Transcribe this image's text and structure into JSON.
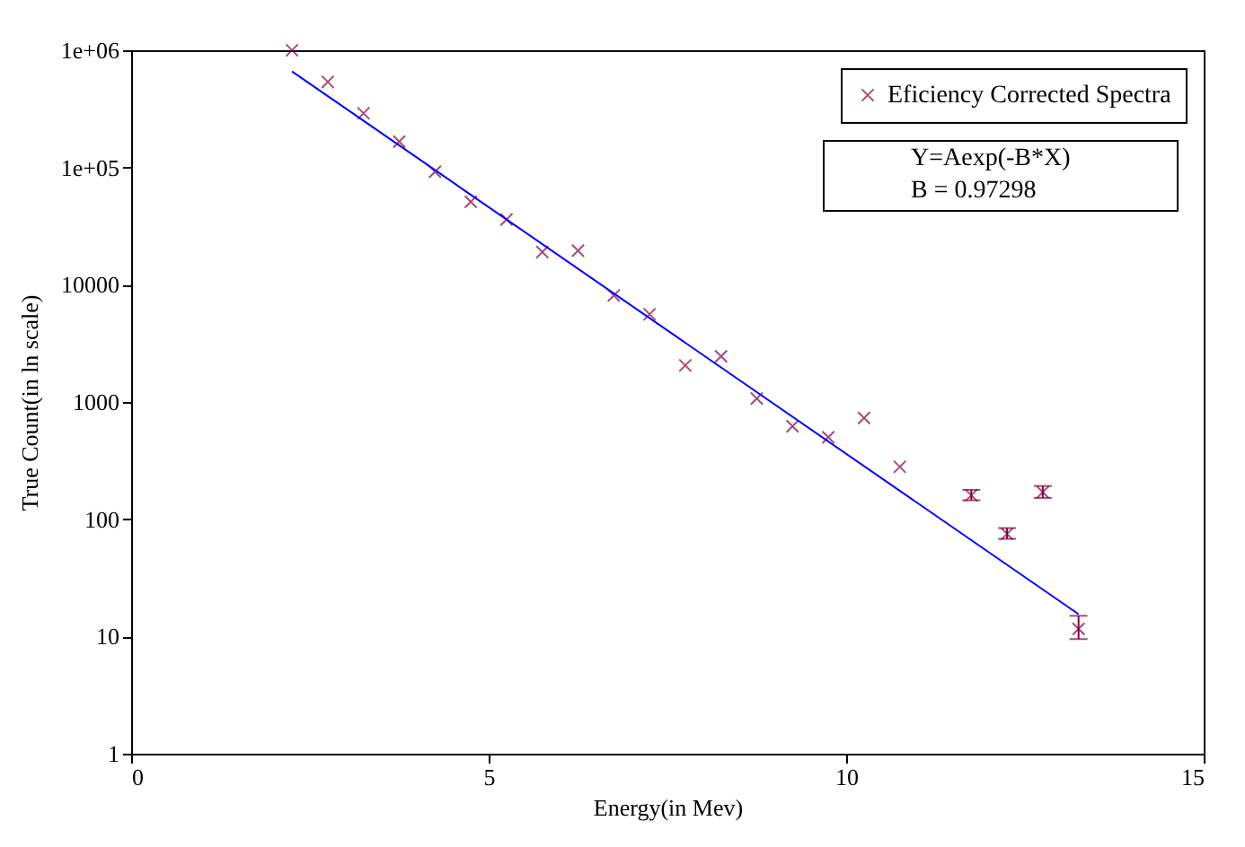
{
  "chart_data": {
    "type": "scatter",
    "xlabel": "Energy(in Mev)",
    "ylabel": "True Count(in ln scale)",
    "annotations": [
      "Y=Aexp(-B*X)",
      "B = 0.97298"
    ],
    "log": "y",
    "legend": "top right",
    "grid": false,
    "xlim": [
      0,
      15
    ],
    "xticks": [
      0,
      5,
      10,
      15
    ],
    "ylim": [
      1,
      1000000
    ],
    "yticks": [
      1,
      10,
      100,
      1000,
      10000,
      {
        "value": 100000,
        "label": "1e+05"
      },
      {
        "value": 1000000,
        "label": "1e+06"
      }
    ],
    "series": [
      {
        "name": "Eficiency Corrected Spectra",
        "marker": "cross",
        "color": "#800040",
        "x": [
          2.25,
          2.75,
          3.25,
          3.75,
          4.25,
          4.75,
          5.25,
          5.75,
          6.25,
          6.75,
          7.25,
          7.75,
          8.25,
          8.75,
          9.25,
          9.75,
          10.25,
          10.75,
          11.75,
          12.25,
          12.75,
          13.25
        ],
        "values": [
          1000000,
          537000,
          290000,
          166000,
          92000,
          51000,
          36000,
          19000,
          19500,
          8100,
          5600,
          2050,
          2450,
          1070,
          620,
          500,
          730,
          280,
          160,
          75,
          170,
          11.6
        ],
        "errors": [
          null,
          null,
          null,
          null,
          null,
          null,
          null,
          null,
          null,
          null,
          null,
          null,
          null,
          null,
          null,
          null,
          null,
          null,
          [
            145,
            178
          ],
          [
            68,
            84
          ],
          [
            152,
            192
          ],
          [
            9.5,
            15
          ]
        ]
      },
      {
        "type": "line",
        "color": "#0000ff",
        "x": [
          2.25,
          13.25
        ],
        "values": [
          660000,
          15.5
        ]
      }
    ]
  }
}
